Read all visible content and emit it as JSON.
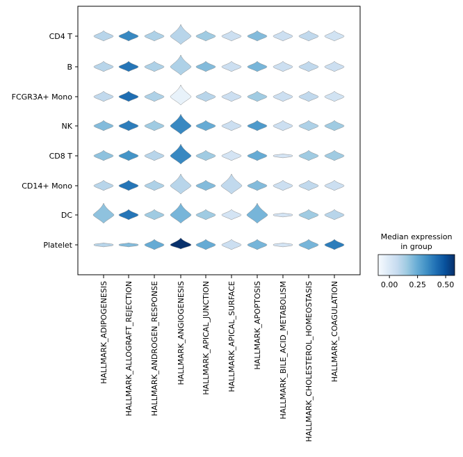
{
  "chart_data": {
    "type": "stacked-violin",
    "title": "",
    "xlabel": "",
    "ylabel": "",
    "categories": [
      "CD4 T",
      "B",
      "FCGR3A+ Mono",
      "NK",
      "CD8 T",
      "CD14+ Mono",
      "DC",
      "Platelet"
    ],
    "genes": [
      "HALLMARK_ADIPOGENESIS",
      "HALLMARK_ALLOGRAFT_REJECTION",
      "HALLMARK_ANDROGEN_RESPONSE",
      "HALLMARK_ANGIOGENESIS",
      "HALLMARK_APICAL_JUNCTION",
      "HALLMARK_APICAL_SURFACE",
      "HALLMARK_APOPTOSIS",
      "HALLMARK_BILE_ACID_METABOLISM",
      "HALLMARK_CHOLESTEROL_HOMEOSTASIS",
      "HALLMARK_COAGULATION"
    ],
    "median_expression": [
      [
        0.1,
        0.35,
        0.12,
        0.1,
        0.15,
        0.05,
        0.2,
        0.05,
        0.08,
        0.03
      ],
      [
        0.1,
        0.4,
        0.12,
        0.12,
        0.2,
        0.05,
        0.22,
        0.05,
        0.08,
        0.05
      ],
      [
        0.08,
        0.42,
        0.12,
        -0.05,
        0.1,
        0.05,
        0.15,
        0.05,
        0.08,
        0.03
      ],
      [
        0.2,
        0.38,
        0.15,
        0.35,
        0.25,
        0.05,
        0.3,
        0.05,
        0.12,
        0.15
      ],
      [
        0.18,
        0.32,
        0.1,
        0.35,
        0.15,
        0.02,
        0.25,
        0.02,
        0.15,
        0.15
      ],
      [
        0.1,
        0.4,
        0.12,
        0.1,
        0.2,
        0.08,
        0.2,
        0.05,
        0.08,
        0.05
      ],
      [
        0.18,
        0.4,
        0.15,
        0.22,
        0.15,
        0.02,
        0.22,
        0.02,
        0.15,
        0.1
      ],
      [
        0.1,
        0.2,
        0.25,
        0.6,
        0.25,
        0.05,
        0.22,
        0.02,
        0.22,
        0.38
      ]
    ],
    "colorbar": {
      "title": "Median expression\nin group",
      "ticks": [
        "0.00",
        "0.25",
        "0.50"
      ],
      "vmin": -0.1,
      "vmax": 0.58,
      "colormap": "Blues"
    },
    "grid": false,
    "legend_position": "bottom-right"
  }
}
